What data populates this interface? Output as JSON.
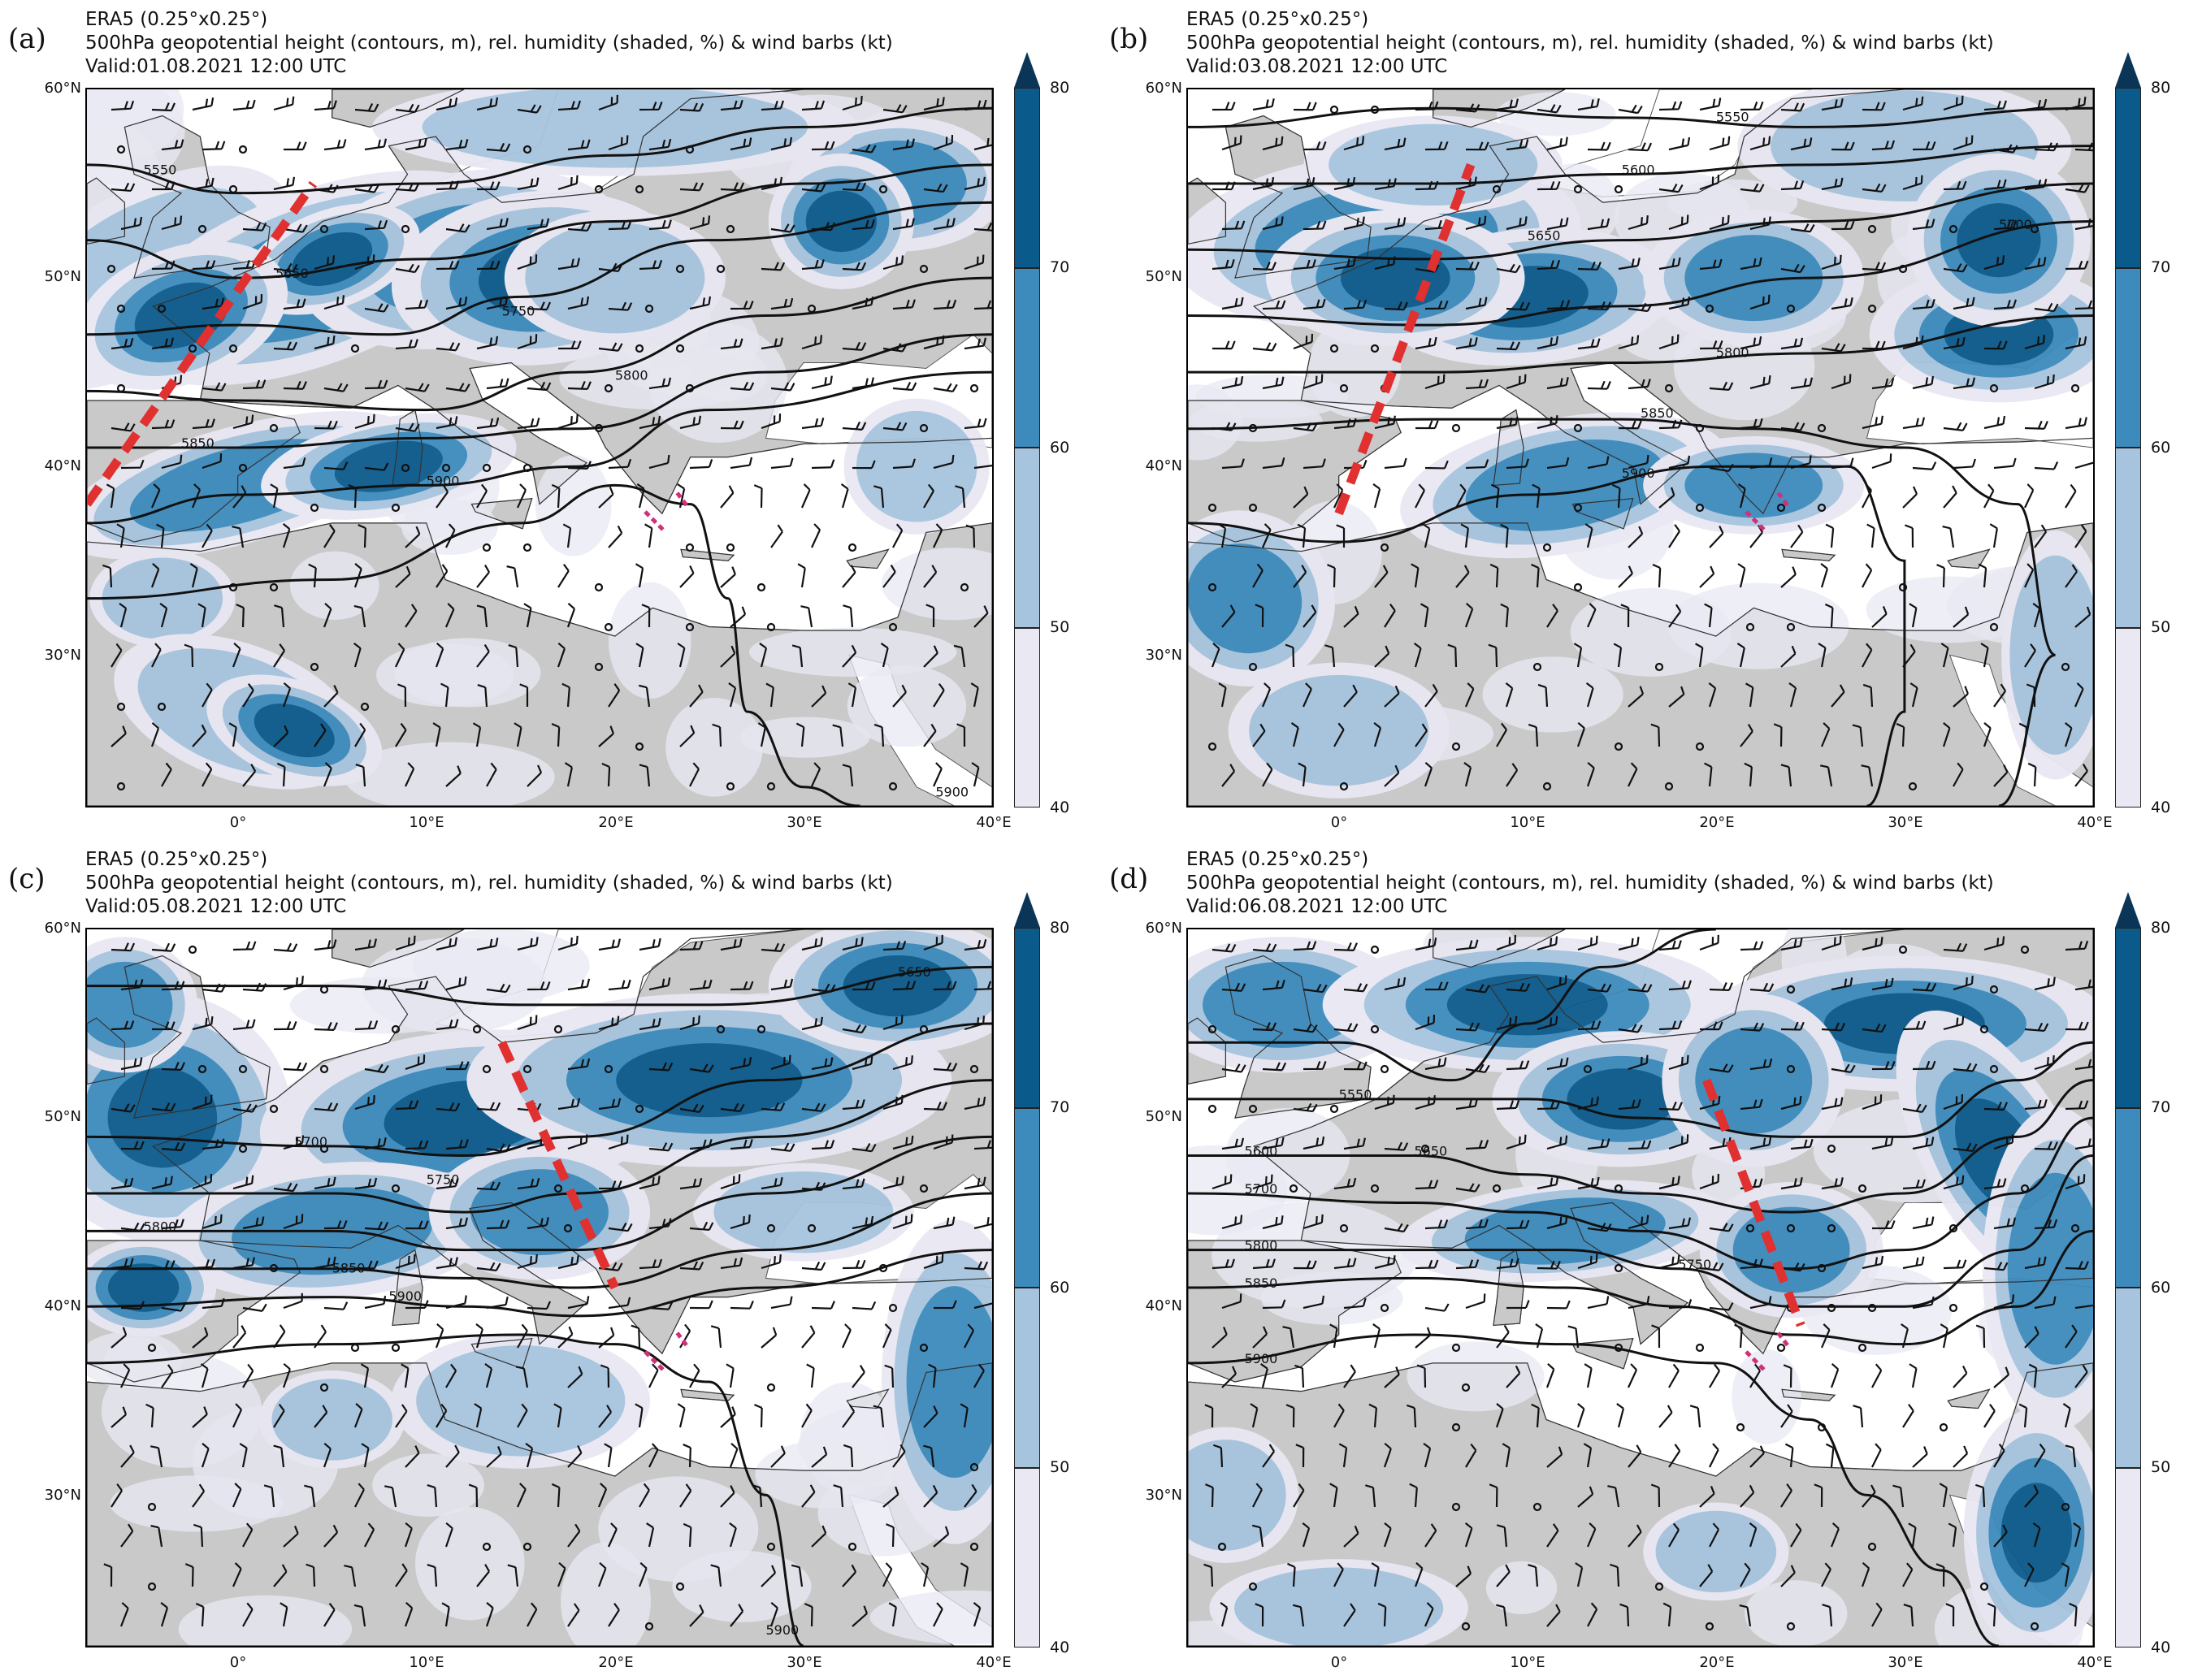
{
  "colors": {
    "land": "#c9c9c9",
    "sea": "#ffffff",
    "rh_40_50": "#e9e8f3",
    "rh_50_60": "#a7c4df",
    "rh_60_70": "#3d8bbd",
    "rh_70_80": "#0b5a8c",
    "rh_80_plus": "#0b3556",
    "contour": "#111111",
    "dashed_axis": "#e03030"
  },
  "colorbar": {
    "ticks": [
      "40",
      "50",
      "60",
      "70",
      "80"
    ]
  },
  "axes": {
    "lat_labels": [
      "60°N",
      "50°N",
      "40°N",
      "30°N"
    ],
    "lon_labels": [
      "0°",
      "10°E",
      "20°E",
      "30°E",
      "40°E"
    ]
  },
  "panels": [
    {
      "letter": "(a)",
      "dataset": "ERA5 (0.25°x0.25°)",
      "description": "500hPa geopotential height (contours, m), rel. humidity (shaded, %) & wind barbs (kt)",
      "valid": "Valid:01.08.2021 12:00 UTC",
      "contour_labels": [
        "5550",
        "5650",
        "5750",
        "5800",
        "5850",
        "5900",
        "5900"
      ],
      "trough_axis_lonlat": [
        [
          -8,
          38
        ],
        [
          4,
          55
        ]
      ]
    },
    {
      "letter": "(b)",
      "dataset": "ERA5 (0.25°x0.25°)",
      "description": "500hPa geopotential height (contours, m), rel. humidity (shaded, %) & wind barbs (kt)",
      "valid": "Valid:03.08.2021 12:00 UTC",
      "contour_labels": [
        "5550",
        "5600",
        "5650",
        "5700",
        "5800",
        "5850",
        "5900"
      ],
      "trough_axis_lonlat": [
        [
          0,
          37.5
        ],
        [
          7,
          56
        ]
      ]
    },
    {
      "letter": "(c)",
      "dataset": "ERA5 (0.25°x0.25°)",
      "description": "500hPa geopotential height (contours, m), rel. humidity (shaded, %) & wind barbs (kt)",
      "valid": "Valid:05.08.2021 12:00 UTC",
      "contour_labels": [
        "5650",
        "5700",
        "5750",
        "5800",
        "5850",
        "5900",
        "5900"
      ],
      "trough_axis_lonlat": [
        [
          14,
          54
        ],
        [
          20,
          41
        ]
      ]
    },
    {
      "letter": "(d)",
      "dataset": "ERA5 (0.25°x0.25°)",
      "description": "500hPa geopotential height (contours, m), rel. humidity (shaded, %) & wind barbs (kt)",
      "valid": "Valid:06.08.2021 12:00 UTC",
      "contour_labels": [
        "5550",
        "5600",
        "5650",
        "5700",
        "5750",
        "5800",
        "5850",
        "5900"
      ],
      "trough_axis_lonlat": [
        [
          19.5,
          52
        ],
        [
          24.5,
          39
        ]
      ]
    }
  ]
}
